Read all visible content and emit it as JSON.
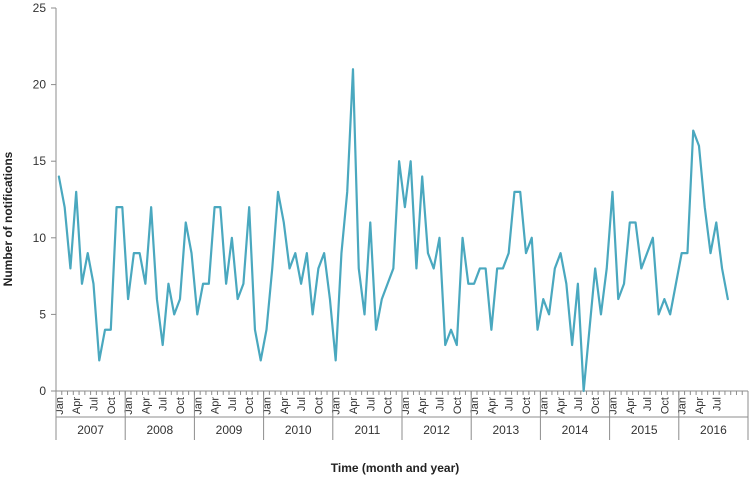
{
  "chart_data": {
    "type": "line",
    "title": "",
    "xlabel": "Time (month and year)",
    "ylabel": "Number of notifications",
    "ylim": [
      0,
      25
    ],
    "yticks": [
      0,
      5,
      10,
      15,
      20,
      25
    ],
    "grid": false,
    "line_color": "#4aa8bf",
    "years": [
      "2007",
      "2008",
      "2009",
      "2010",
      "2011",
      "2012",
      "2013",
      "2014",
      "2015",
      "2016"
    ],
    "month_tick_labels": [
      "Jan",
      "Apr",
      "Jul",
      "Oct"
    ],
    "series": [
      {
        "values": [
          14,
          12,
          8,
          13,
          7,
          9,
          7,
          2,
          4,
          4,
          12,
          12,
          6,
          9,
          9,
          7,
          12,
          6,
          3,
          7,
          5,
          6,
          11,
          9,
          5,
          7,
          7,
          12,
          12,
          7,
          10,
          6,
          7,
          12,
          4,
          2,
          4,
          8,
          13,
          11,
          8,
          9,
          7,
          9,
          5,
          8,
          9,
          6,
          2,
          9,
          13,
          21,
          8,
          5,
          11,
          4,
          6,
          7,
          8,
          15,
          12,
          15,
          8,
          14,
          9,
          8,
          10,
          3,
          4,
          3,
          10,
          7,
          7,
          8,
          8,
          4,
          8,
          8,
          9,
          13,
          13,
          9,
          10,
          4,
          6,
          5,
          8,
          9,
          7,
          3,
          7,
          0,
          4,
          8,
          5,
          8,
          13,
          6,
          7,
          11,
          11,
          8,
          9,
          10,
          5,
          6,
          5,
          7,
          9,
          9,
          17,
          16,
          12,
          9,
          11,
          8,
          6
        ]
      }
    ]
  }
}
